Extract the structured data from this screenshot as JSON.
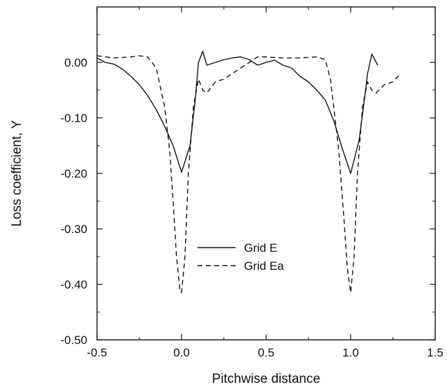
{
  "chart_data": {
    "type": "line",
    "title": "",
    "xlabel": "Pitchwise distance",
    "ylabel": "Loss coefficient, Y",
    "xlim": [
      -0.5,
      1.5
    ],
    "ylim": [
      -0.5,
      0.1
    ],
    "x_ticks": [
      -0.5,
      0.0,
      0.5,
      1.0,
      1.5
    ],
    "x_tick_labels": [
      "-0.5",
      "0.0",
      "0.5",
      "1.0",
      "1.5"
    ],
    "y_ticks": [
      0.0,
      -0.1,
      -0.2,
      -0.3,
      -0.4,
      -0.5
    ],
    "y_tick_labels": [
      "0.00",
      "-0.10",
      "-0.20",
      "-0.30",
      "-0.40",
      "-0.50"
    ],
    "grid": false,
    "legend_position": "center-left",
    "colors": {
      "line": "#111111",
      "axis": "#111111"
    },
    "series": [
      {
        "name": "Grid E",
        "style": "solid",
        "points": [
          [
            -0.5,
            0.008
          ],
          [
            -0.45,
            0.0
          ],
          [
            -0.4,
            -0.003
          ],
          [
            -0.35,
            -0.012
          ],
          [
            -0.3,
            -0.025
          ],
          [
            -0.25,
            -0.04
          ],
          [
            -0.2,
            -0.06
          ],
          [
            -0.15,
            -0.085
          ],
          [
            -0.1,
            -0.115
          ],
          [
            -0.05,
            -0.15
          ],
          [
            0.0,
            -0.198
          ],
          [
            0.05,
            -0.15
          ],
          [
            0.08,
            -0.07
          ],
          [
            0.1,
            0.0
          ],
          [
            0.125,
            0.02
          ],
          [
            0.15,
            -0.005
          ],
          [
            0.2,
            0.0
          ],
          [
            0.25,
            0.005
          ],
          [
            0.3,
            0.008
          ],
          [
            0.35,
            0.01
          ],
          [
            0.4,
            0.005
          ],
          [
            0.45,
            -0.005
          ],
          [
            0.5,
            0.0
          ],
          [
            0.55,
            0.004
          ],
          [
            0.6,
            -0.005
          ],
          [
            0.65,
            -0.01
          ],
          [
            0.7,
            -0.025
          ],
          [
            0.75,
            -0.035
          ],
          [
            0.8,
            -0.05
          ],
          [
            0.85,
            -0.068
          ],
          [
            0.9,
            -0.105
          ],
          [
            0.95,
            -0.155
          ],
          [
            1.0,
            -0.2
          ],
          [
            1.05,
            -0.14
          ],
          [
            1.08,
            -0.07
          ],
          [
            1.1,
            -0.02
          ],
          [
            1.125,
            0.015
          ],
          [
            1.16,
            -0.005
          ]
        ]
      },
      {
        "name": "Grid Ea",
        "style": "dashed",
        "points": [
          [
            -0.5,
            0.012
          ],
          [
            -0.4,
            0.008
          ],
          [
            -0.3,
            0.01
          ],
          [
            -0.25,
            0.012
          ],
          [
            -0.2,
            0.01
          ],
          [
            -0.15,
            -0.01
          ],
          [
            -0.1,
            -0.08
          ],
          [
            -0.07,
            -0.16
          ],
          [
            -0.05,
            -0.25
          ],
          [
            -0.03,
            -0.35
          ],
          [
            -0.01,
            -0.41
          ],
          [
            0.0,
            -0.415
          ],
          [
            0.02,
            -0.35
          ],
          [
            0.04,
            -0.2
          ],
          [
            0.07,
            -0.08
          ],
          [
            0.1,
            -0.03
          ],
          [
            0.125,
            -0.05
          ],
          [
            0.15,
            -0.055
          ],
          [
            0.2,
            -0.035
          ],
          [
            0.25,
            -0.03
          ],
          [
            0.3,
            -0.02
          ],
          [
            0.35,
            -0.01
          ],
          [
            0.4,
            0.0
          ],
          [
            0.45,
            0.01
          ],
          [
            0.5,
            0.01
          ],
          [
            0.6,
            0.008
          ],
          [
            0.7,
            0.008
          ],
          [
            0.8,
            0.01
          ],
          [
            0.85,
            0.005
          ],
          [
            0.88,
            -0.03
          ],
          [
            0.9,
            -0.08
          ],
          [
            0.93,
            -0.16
          ],
          [
            0.96,
            -0.28
          ],
          [
            0.98,
            -0.37
          ],
          [
            1.0,
            -0.415
          ],
          [
            1.02,
            -0.35
          ],
          [
            1.04,
            -0.2
          ],
          [
            1.07,
            -0.08
          ],
          [
            1.1,
            -0.035
          ],
          [
            1.125,
            -0.05
          ],
          [
            1.15,
            -0.055
          ],
          [
            1.2,
            -0.04
          ],
          [
            1.25,
            -0.035
          ],
          [
            1.28,
            -0.025
          ],
          [
            1.3,
            -0.02
          ]
        ]
      }
    ]
  }
}
